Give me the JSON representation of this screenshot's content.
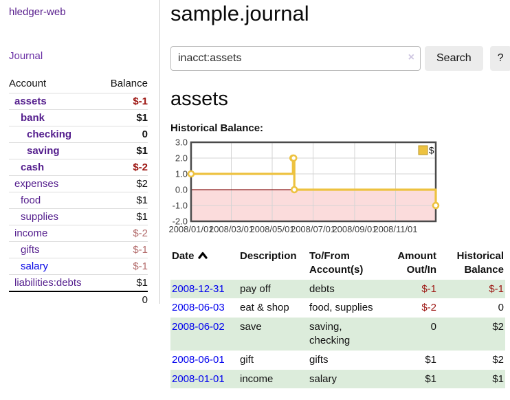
{
  "app": {
    "brand": "hledger-web",
    "nav_journal": "Journal"
  },
  "sidebar": {
    "header": {
      "account": "Account",
      "balance": "Balance"
    },
    "accounts": [
      {
        "name": "assets",
        "balance": "$-1",
        "depth": 1,
        "bold": true,
        "neg": "strong",
        "link": "purple"
      },
      {
        "name": "bank",
        "balance": "$1",
        "depth": 2,
        "bold": true,
        "neg": "",
        "link": "purple"
      },
      {
        "name": "checking",
        "balance": "0",
        "depth": 3,
        "bold": true,
        "neg": "",
        "link": "purple"
      },
      {
        "name": "saving",
        "balance": "$1",
        "depth": 3,
        "bold": true,
        "neg": "",
        "link": "purple"
      },
      {
        "name": "cash",
        "balance": "$-2",
        "depth": 2,
        "bold": true,
        "neg": "strong",
        "link": "purple"
      },
      {
        "name": "expenses",
        "balance": "$2",
        "depth": 1,
        "bold": false,
        "neg": "",
        "link": "purple"
      },
      {
        "name": "food",
        "balance": "$1",
        "depth": 2,
        "bold": false,
        "neg": "",
        "link": "purple"
      },
      {
        "name": "supplies",
        "balance": "$1",
        "depth": 2,
        "bold": false,
        "neg": "",
        "link": "purple"
      },
      {
        "name": "income",
        "balance": "$-2",
        "depth": 1,
        "bold": false,
        "neg": "soft",
        "link": "purple"
      },
      {
        "name": "gifts",
        "balance": "$-1",
        "depth": 2,
        "bold": false,
        "neg": "soft",
        "link": "purple"
      },
      {
        "name": "salary",
        "balance": "$-1",
        "depth": 2,
        "bold": false,
        "neg": "soft",
        "link": "blue"
      },
      {
        "name": "liabilities:debts",
        "balance": "$1",
        "depth": 1,
        "bold": false,
        "neg": "",
        "link": "purple"
      }
    ],
    "total": "0"
  },
  "main": {
    "title": "sample.journal",
    "search": {
      "value": "inacct:assets",
      "clear_icon": "×",
      "button_label": "Search",
      "help_label": "?"
    },
    "account_heading": "assets",
    "chart_label": "Historical Balance:"
  },
  "chart_data": {
    "type": "line",
    "step": true,
    "title": "Historical Balance",
    "legend": "$",
    "legend_position": "top-right",
    "grid": true,
    "xlim": [
      "2008-01-01",
      "2008-12-31"
    ],
    "ylim": [
      -2,
      3
    ],
    "y_ticks": [
      3.0,
      2.0,
      1.0,
      0.0,
      -1.0,
      -2.0
    ],
    "x_ticks": [
      {
        "date": "2008-01-01",
        "label": "2008/01/01"
      },
      {
        "date": "2008-03-01",
        "label": "2008/03/01"
      },
      {
        "date": "2008-05-01",
        "label": "2008/05/01"
      },
      {
        "date": "2008-07-01",
        "label": "2008/07/01"
      },
      {
        "date": "2008-09-01",
        "label": "2008/09/01"
      },
      {
        "date": "2008-11-01",
        "label": "2008/11/01"
      }
    ],
    "points": [
      [
        "2008-01-01",
        1
      ],
      [
        "2008-06-01",
        2
      ],
      [
        "2008-06-02",
        2
      ],
      [
        "2008-06-03",
        0
      ],
      [
        "2008-12-31",
        -1
      ]
    ],
    "colors": {
      "series": "#edc240",
      "series_border": "#b8962a",
      "negative_region": "#fbdcdc",
      "zero_line": "#8b1a1a",
      "grid": "#d4d4d4",
      "plot_border": "#4a4a4a"
    }
  },
  "table": {
    "headers": [
      {
        "line1": "Date",
        "line2": "",
        "align": "left",
        "sort": true
      },
      {
        "line1": "Description",
        "line2": "",
        "align": "left",
        "sort": false
      },
      {
        "line1": "To/From",
        "line2": "Account(s)",
        "align": "left",
        "sort": false
      },
      {
        "line1": "Amount",
        "line2": "Out/In",
        "align": "right",
        "sort": false
      },
      {
        "line1": "Historical",
        "line2": "Balance",
        "align": "right",
        "sort": false
      }
    ],
    "rows": [
      {
        "date": "2008-12-31",
        "description": "pay off",
        "accounts": [
          "debts"
        ],
        "amount": "$-1",
        "amount_neg": true,
        "balance": "$-1",
        "balance_neg": true
      },
      {
        "date": "2008-06-03",
        "description": "eat & shop",
        "accounts": [
          "food, supplies"
        ],
        "amount": "$-2",
        "amount_neg": true,
        "balance": "0",
        "balance_neg": false
      },
      {
        "date": "2008-06-02",
        "description": "save",
        "accounts": [
          "saving,",
          "checking"
        ],
        "amount": "0",
        "amount_neg": false,
        "balance": "$2",
        "balance_neg": false
      },
      {
        "date": "2008-06-01",
        "description": "gift",
        "accounts": [
          "gifts"
        ],
        "amount": "$1",
        "amount_neg": false,
        "balance": "$2",
        "balance_neg": false
      },
      {
        "date": "2008-01-01",
        "description": "income",
        "accounts": [
          "salary"
        ],
        "amount": "$1",
        "amount_neg": false,
        "balance": "$1",
        "balance_neg": false
      }
    ]
  }
}
